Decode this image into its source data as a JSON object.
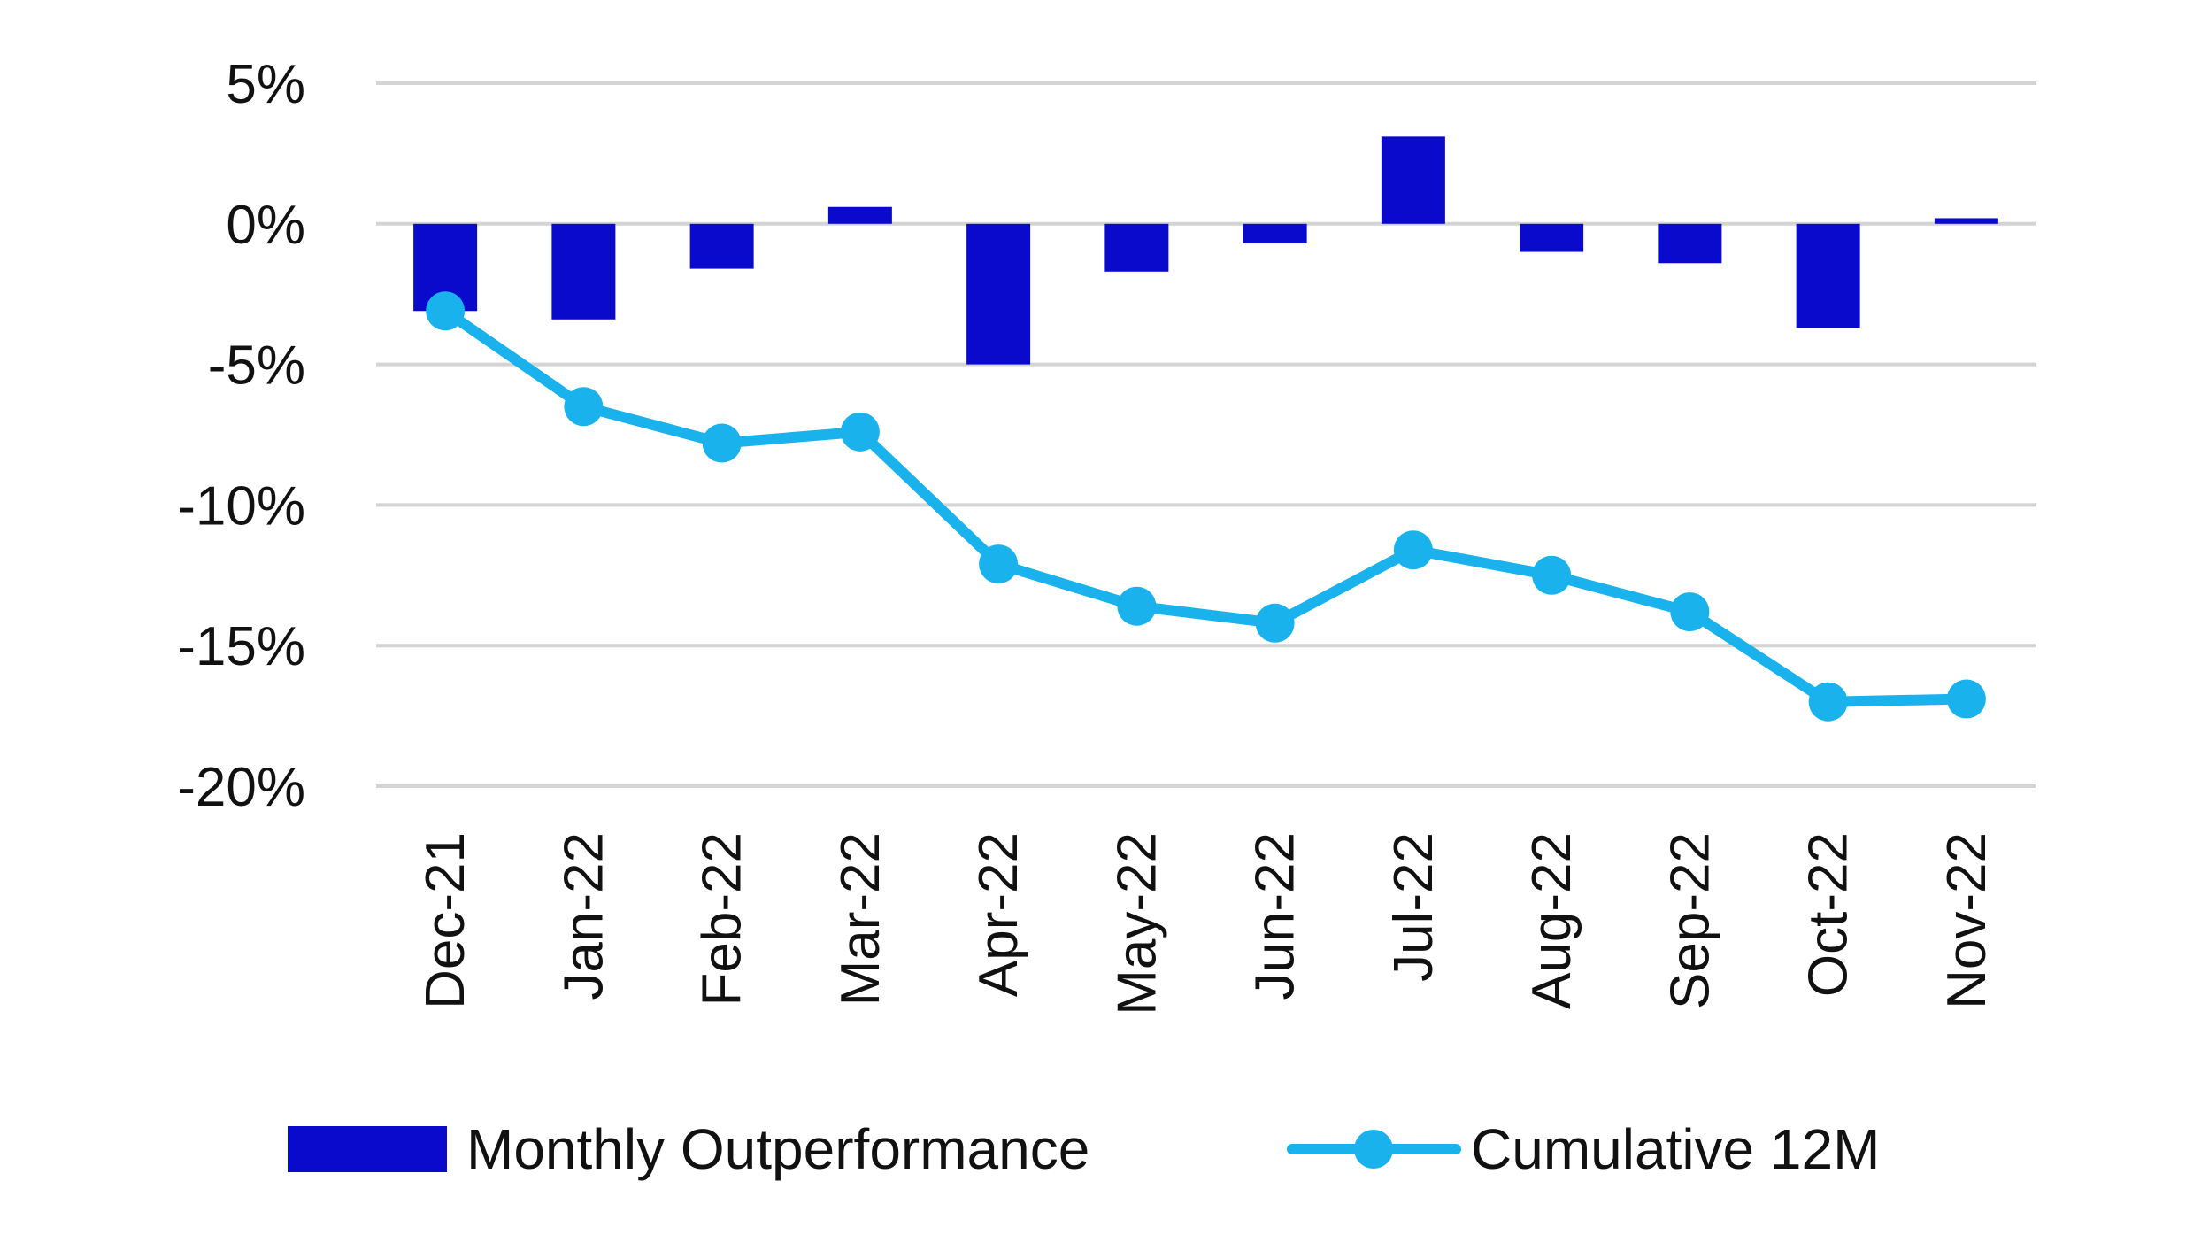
{
  "chart_data": {
    "type": "bar",
    "title": "",
    "xlabel": "",
    "ylabel": "",
    "categories": [
      "Dec-21",
      "Jan-22",
      "Feb-22",
      "Mar-22",
      "Apr-22",
      "May-22",
      "Jun-22",
      "Jul-22",
      "Aug-22",
      "Sep-22",
      "Oct-22",
      "Nov-22"
    ],
    "ylim": [
      -20,
      5
    ],
    "yticks": [
      5,
      0,
      -5,
      -10,
      -15,
      -20
    ],
    "ytick_labels": [
      "5%",
      "0%",
      "-5%",
      "-10%",
      "-15%",
      "-20%"
    ],
    "grid": true,
    "legend_position": "bottom",
    "series": [
      {
        "name": "Monthly Outperformance",
        "type": "bar",
        "color": "#0a0acc",
        "values": [
          -3.1,
          -3.4,
          -1.6,
          0.6,
          -5.0,
          -1.7,
          -0.7,
          3.1,
          -1.0,
          -1.4,
          -3.7,
          0.2
        ]
      },
      {
        "name": "Cumulative 12M",
        "type": "line",
        "color": "#1ab2ec",
        "values": [
          -3.1,
          -6.5,
          -7.8,
          -7.4,
          -12.1,
          -13.6,
          -14.2,
          -11.6,
          -12.5,
          -13.8,
          -17.0,
          -16.9
        ]
      }
    ]
  }
}
